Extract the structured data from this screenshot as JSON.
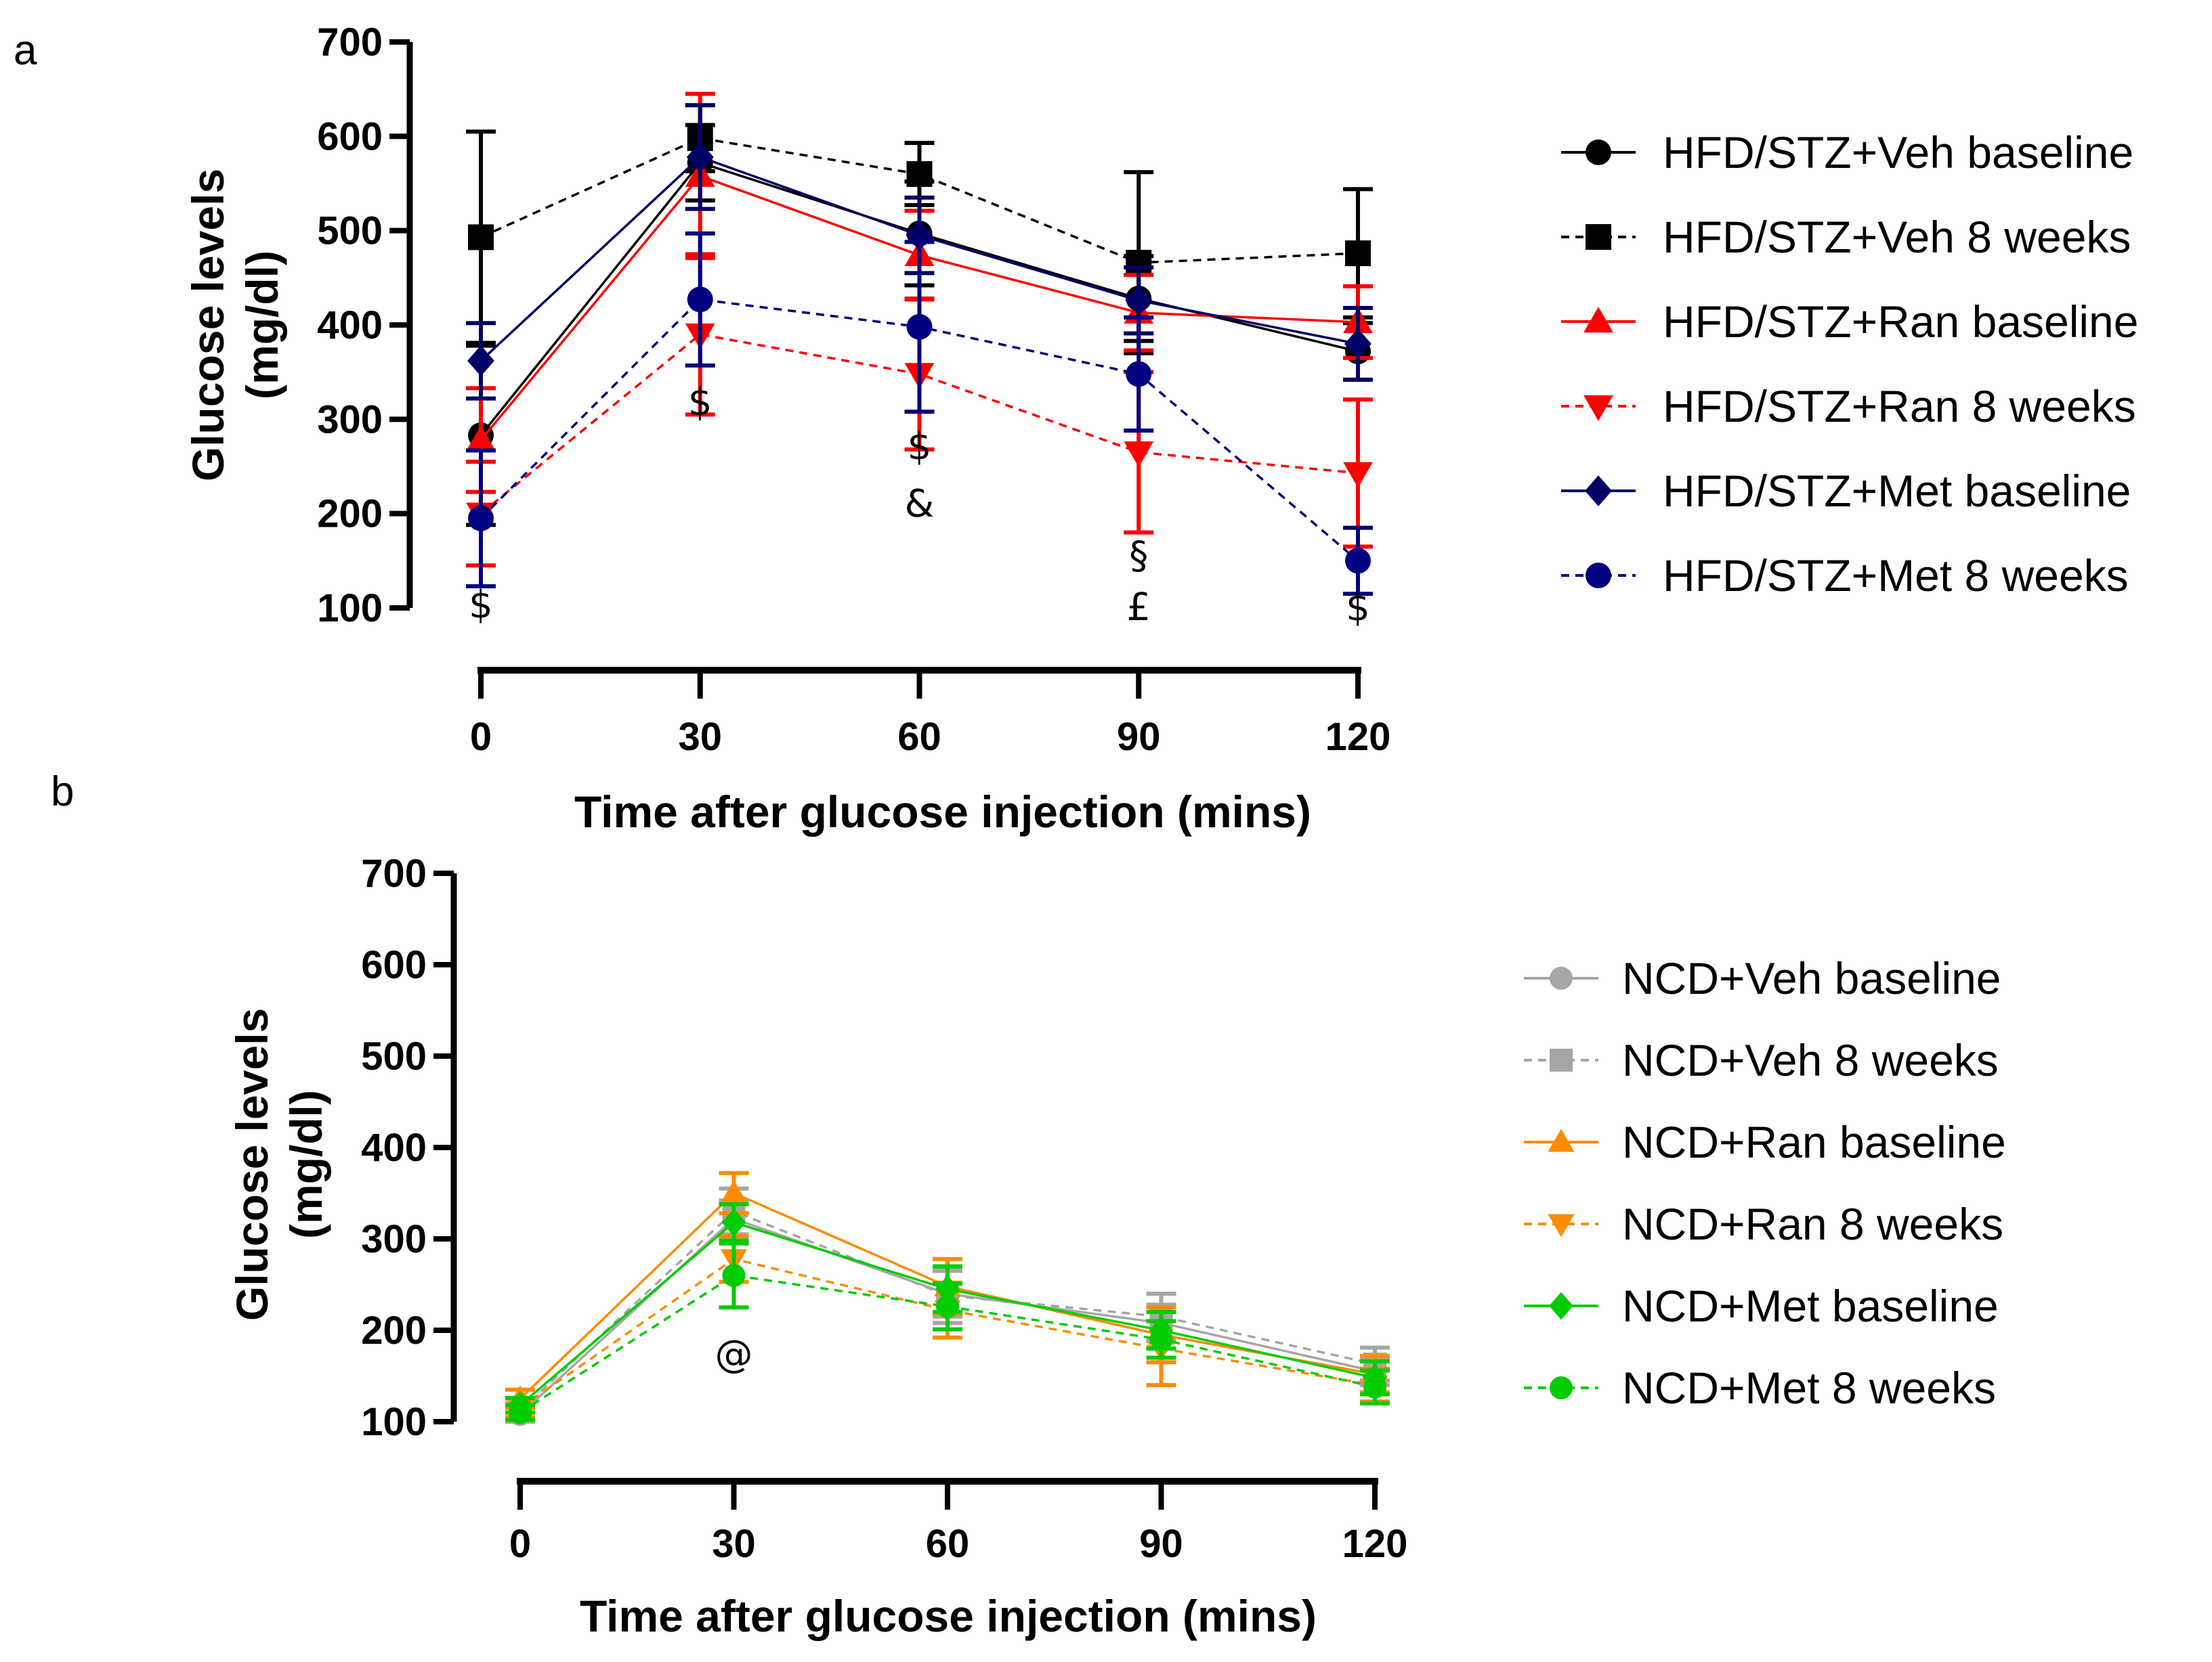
{
  "chart_data": [
    {
      "panel": "a",
      "type": "line",
      "xlabel": "Time after glucose injection (mins)",
      "ylabel": "Glucose levels (mg/dl)",
      "ylabel_lines": [
        "Glucose levels",
        "(mg/dl)"
      ],
      "x": [
        0,
        30,
        60,
        90,
        120
      ],
      "xticks": [
        "0",
        "30",
        "60",
        "90",
        "120"
      ],
      "ylim": [
        100,
        700
      ],
      "yticks": [
        "100",
        "200",
        "300",
        "400",
        "500",
        "600",
        "700"
      ],
      "series": [
        {
          "name": "HFD/STZ+Veh baseline",
          "color": "#000000",
          "marker": "circle",
          "dashed": false,
          "values": [
            283,
            572,
            497,
            428,
            372
          ],
          "err": [
            95,
            40,
            55,
            45,
            30
          ]
        },
        {
          "name": "HFD/STZ+Veh 8 weeks",
          "color": "#000000",
          "marker": "square",
          "dashed": true,
          "values": [
            493,
            598,
            560,
            466,
            476
          ],
          "err": [
            112,
            35,
            33,
            96,
            68
          ]
        },
        {
          "name": "HFD/STZ+Ran baseline",
          "color": "#ff0000",
          "marker": "triangle-up",
          "dashed": false,
          "values": [
            278,
            558,
            474,
            413,
            403
          ],
          "err": [
            55,
            87,
            47,
            40,
            38
          ]
        },
        {
          "name": "HFD/STZ+Ran 8 weeks",
          "color": "#ff0000",
          "marker": "triangle-down",
          "dashed": true,
          "values": [
            200,
            390,
            348,
            265,
            243
          ],
          "err": [
            55,
            85,
            80,
            85,
            78
          ]
        },
        {
          "name": "HFD/STZ+Met baseline",
          "color": "#000066",
          "marker": "diamond",
          "dashed": false,
          "values": [
            362,
            578,
            495,
            426,
            380
          ],
          "err": [
            40,
            55,
            40,
            35,
            38
          ]
        },
        {
          "name": "HFD/STZ+Met 8 weeks",
          "color": "#000080",
          "marker": "circle",
          "dashed": true,
          "values": [
            195,
            427,
            398,
            348,
            150
          ],
          "err": [
            72,
            70,
            90,
            60,
            35
          ]
        }
      ],
      "annotations": [
        {
          "text": "$",
          "x": 0,
          "y": 90
        },
        {
          "text": "$",
          "x": 30,
          "y": 305
        },
        {
          "text": "$",
          "x": 60,
          "y": 258
        },
        {
          "text": "&",
          "x": 60,
          "y": 197
        },
        {
          "text": "§",
          "x": 90,
          "y": 142
        },
        {
          "text": "£",
          "x": 90,
          "y": 87
        },
        {
          "text": "$",
          "x": 120,
          "y": 87
        }
      ]
    },
    {
      "panel": "b",
      "type": "line",
      "xlabel": "Time after glucose injection (mins)",
      "ylabel": "Glucose levels (mg/dl)",
      "ylabel_lines": [
        "Glucose levels",
        "(mg/dl)"
      ],
      "x": [
        0,
        30,
        60,
        90,
        120
      ],
      "xticks": [
        "0",
        "30",
        "60",
        "90",
        "120"
      ],
      "ylim": [
        100,
        700
      ],
      "yticks": [
        "100",
        "200",
        "300",
        "400",
        "500",
        "600",
        "700"
      ],
      "series": [
        {
          "name": "NCD+Veh baseline",
          "color": "#a6a6a6",
          "marker": "circle",
          "dashed": false,
          "values": [
            108,
            322,
            240,
            208,
            155
          ],
          "err": [
            8,
            20,
            25,
            20,
            15
          ]
        },
        {
          "name": "NCD+Veh 8 weeks",
          "color": "#a6a6a6",
          "marker": "square",
          "dashed": true,
          "values": [
            112,
            330,
            238,
            215,
            163
          ],
          "err": [
            8,
            25,
            30,
            25,
            18
          ]
        },
        {
          "name": "NCD+Ran baseline",
          "color": "#ff8c00",
          "marker": "triangle-up",
          "dashed": false,
          "values": [
            125,
            350,
            248,
            195,
            152
          ],
          "err": [
            10,
            22,
            30,
            30,
            20
          ]
        },
        {
          "name": "NCD+Ran 8 weeks",
          "color": "#ff8c00",
          "marker": "triangle-down",
          "dashed": true,
          "values": [
            115,
            278,
            222,
            180,
            140
          ],
          "err": [
            10,
            25,
            30,
            40,
            18
          ]
        },
        {
          "name": "NCD+Met baseline",
          "color": "#00cc00",
          "marker": "diamond",
          "dashed": false,
          "values": [
            118,
            318,
            245,
            200,
            148
          ],
          "err": [
            8,
            20,
            25,
            20,
            18
          ]
        },
        {
          "name": "NCD+Met 8 weeks",
          "color": "#00cc00",
          "marker": "circle",
          "dashed": true,
          "values": [
            110,
            260,
            226,
            190,
            138
          ],
          "err": [
            8,
            35,
            25,
            20,
            18
          ]
        }
      ],
      "annotations": [
        {
          "text": "@",
          "x": 30,
          "y": 160
        }
      ]
    }
  ]
}
